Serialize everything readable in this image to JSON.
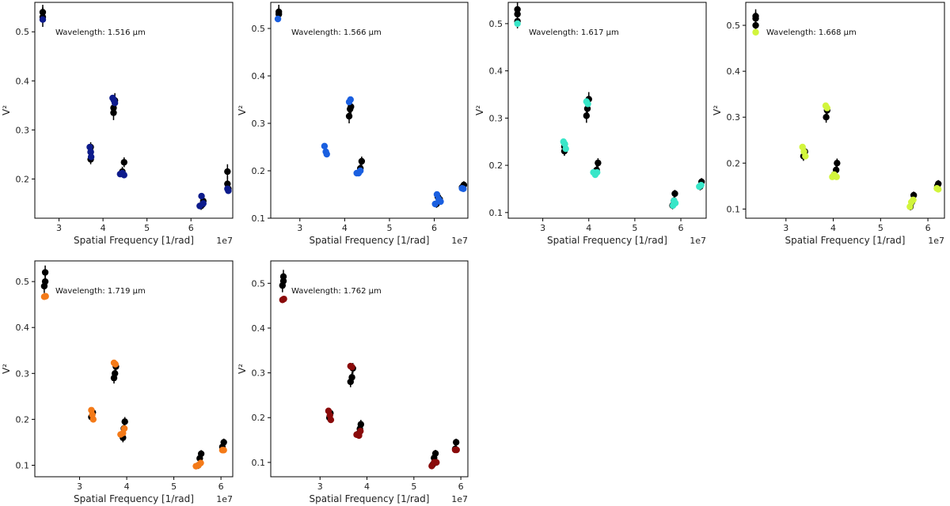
{
  "chart_data": [
    {
      "type": "scatter",
      "xlabel": "Spatial Frequency [1/rad]",
      "ylabel": "V²",
      "x_scale_note": "1e7",
      "annotation": "Wavelength: 1.516 μm",
      "xlim": [
        2.45,
        6.95
      ],
      "ylim": [
        0.12,
        0.56
      ],
      "xticks": [
        3,
        4,
        5,
        6
      ],
      "yticks": [
        0.2,
        0.3,
        0.4,
        0.5
      ],
      "xtick_labels": [
        "3",
        "4",
        "5",
        "6"
      ],
      "ytick_labels": [
        "0.2",
        "0.3",
        "0.4",
        "0.5"
      ],
      "grid": false,
      "color": "#0d1b8c",
      "series": [
        {
          "role": "observed",
          "color": "#000000",
          "x": [
            2.63,
            2.63,
            3.72,
            3.72,
            3.72,
            4.24,
            4.24,
            4.27,
            4.44,
            4.48,
            6.23,
            6.26,
            6.28,
            6.83,
            6.83,
            6.85
          ],
          "y": [
            0.53,
            0.54,
            0.24,
            0.255,
            0.265,
            0.335,
            0.345,
            0.36,
            0.215,
            0.234,
            0.145,
            0.148,
            0.155,
            0.19,
            0.215,
            0.18
          ],
          "err": [
            0.02,
            0.015,
            0.01,
            0.01,
            0.01,
            0.015,
            0.015,
            0.015,
            0.01,
            0.01,
            0.008,
            0.008,
            0.01,
            0.015,
            0.015,
            0.01
          ]
        },
        {
          "role": "model",
          "color": "#0d1b8c",
          "x": [
            2.63,
            3.7,
            3.72,
            3.73,
            4.22,
            4.25,
            4.27,
            4.39,
            4.44,
            4.48,
            6.2,
            6.24,
            6.28,
            6.83,
            6.85
          ],
          "y": [
            0.525,
            0.265,
            0.255,
            0.245,
            0.365,
            0.36,
            0.355,
            0.21,
            0.212,
            0.208,
            0.145,
            0.165,
            0.15,
            0.18,
            0.176
          ]
        }
      ]
    },
    {
      "type": "scatter",
      "xlabel": "Spatial Frequency [1/rad]",
      "ylabel": "V²",
      "x_scale_note": "1e7",
      "annotation": "Wavelength: 1.566 μm",
      "xlim": [
        2.35,
        6.75
      ],
      "ylim": [
        0.1,
        0.555
      ],
      "xticks": [
        3,
        4,
        5,
        6
      ],
      "yticks": [
        0.1,
        0.2,
        0.3,
        0.4,
        0.5
      ],
      "xtick_labels": [
        "3",
        "4",
        "5",
        "6"
      ],
      "ytick_labels": [
        "0.1",
        "0.2",
        "0.3",
        "0.4",
        "0.5"
      ],
      "grid": false,
      "color": "#1a5fe0",
      "series": [
        {
          "role": "observed",
          "color": "#000000",
          "x": [
            2.53,
            2.53,
            4.1,
            4.12,
            4.14,
            4.35,
            4.38,
            6.05,
            6.08,
            6.12,
            6.62,
            6.66
          ],
          "y": [
            0.53,
            0.535,
            0.315,
            0.33,
            0.335,
            0.205,
            0.22,
            0.13,
            0.145,
            0.14,
            0.165,
            0.17
          ],
          "err": [
            0.015,
            0.015,
            0.015,
            0.015,
            0.015,
            0.01,
            0.01,
            0.008,
            0.008,
            0.008,
            0.008,
            0.008
          ]
        },
        {
          "role": "model",
          "color": "#1a5fe0",
          "x": [
            2.51,
            3.55,
            3.58,
            3.6,
            4.1,
            4.13,
            4.27,
            4.31,
            4.35,
            6.02,
            6.06,
            6.1,
            6.14,
            6.62,
            6.65
          ],
          "y": [
            0.52,
            0.252,
            0.24,
            0.235,
            0.345,
            0.35,
            0.195,
            0.195,
            0.2,
            0.13,
            0.15,
            0.14,
            0.135,
            0.163,
            0.162
          ]
        }
      ]
    },
    {
      "type": "scatter",
      "xlabel": "Spatial Frequency [1/rad]",
      "ylabel": "V²",
      "x_scale_note": "1e7",
      "annotation": "Wavelength: 1.617 μm",
      "xlim": [
        2.25,
        6.55
      ],
      "ylim": [
        0.088,
        0.545
      ],
      "xticks": [
        3,
        4,
        5,
        6
      ],
      "yticks": [
        0.1,
        0.2,
        0.3,
        0.4,
        0.5
      ],
      "xtick_labels": [
        "3",
        "4",
        "5",
        "6"
      ],
      "ytick_labels": [
        "0.1",
        "0.2",
        "0.3",
        "0.4",
        "0.5"
      ],
      "grid": false,
      "color": "#38e6c8",
      "series": [
        {
          "role": "observed",
          "color": "#000000",
          "x": [
            2.45,
            2.45,
            2.45,
            3.47,
            3.47,
            3.95,
            3.97,
            4.0,
            4.17,
            4.2,
            5.82,
            5.85,
            5.87,
            6.42,
            6.45
          ],
          "y": [
            0.505,
            0.52,
            0.53,
            0.23,
            0.24,
            0.305,
            0.32,
            0.34,
            0.19,
            0.205,
            0.115,
            0.125,
            0.14,
            0.155,
            0.165
          ],
          "err": [
            0.015,
            0.015,
            0.015,
            0.01,
            0.01,
            0.015,
            0.015,
            0.015,
            0.01,
            0.01,
            0.008,
            0.008,
            0.008,
            0.008,
            0.008
          ]
        },
        {
          "role": "model",
          "color": "#38e6c8",
          "x": [
            2.45,
            3.45,
            3.48,
            3.5,
            3.95,
            3.98,
            4.1,
            4.14,
            4.18,
            5.83,
            5.85,
            5.88,
            6.4,
            6.44
          ],
          "y": [
            0.5,
            0.25,
            0.245,
            0.235,
            0.335,
            0.33,
            0.185,
            0.18,
            0.185,
            0.115,
            0.125,
            0.12,
            0.155,
            0.158
          ]
        }
      ]
    },
    {
      "type": "scatter",
      "xlabel": "Spatial Frequency [1/rad]",
      "ylabel": "V²",
      "x_scale_note": "1e7",
      "annotation": "Wavelength: 1.668 μm",
      "xlim": [
        2.15,
        6.35
      ],
      "ylim": [
        0.08,
        0.55
      ],
      "xticks": [
        3,
        4,
        5,
        6
      ],
      "yticks": [
        0.1,
        0.2,
        0.3,
        0.4,
        0.5
      ],
      "xtick_labels": [
        "3",
        "4",
        "5",
        "6"
      ],
      "ytick_labels": [
        "0.1",
        "0.2",
        "0.3",
        "0.4",
        "0.5"
      ],
      "grid": false,
      "color": "#d2f53c",
      "series": [
        {
          "role": "observed",
          "color": "#000000",
          "x": [
            2.36,
            2.36,
            2.36,
            3.37,
            3.4,
            3.85,
            3.87,
            4.02,
            4.06,
            4.08,
            5.63,
            5.66,
            5.7,
            6.2,
            6.22
          ],
          "y": [
            0.5,
            0.515,
            0.52,
            0.215,
            0.225,
            0.3,
            0.315,
            0.175,
            0.185,
            0.2,
            0.105,
            0.115,
            0.13,
            0.15,
            0.155
          ],
          "err": [
            0.015,
            0.015,
            0.015,
            0.01,
            0.01,
            0.012,
            0.012,
            0.01,
            0.01,
            0.01,
            0.008,
            0.008,
            0.008,
            0.008,
            0.008
          ]
        },
        {
          "role": "model",
          "color": "#d2f53c",
          "x": [
            2.36,
            3.35,
            3.38,
            3.41,
            3.84,
            3.87,
            3.98,
            4.02,
            4.07,
            5.62,
            5.65,
            5.69,
            6.19,
            6.22
          ],
          "y": [
            0.485,
            0.235,
            0.225,
            0.215,
            0.325,
            0.32,
            0.17,
            0.175,
            0.17,
            0.105,
            0.115,
            0.12,
            0.145,
            0.143
          ]
        }
      ]
    },
    {
      "type": "scatter",
      "xlabel": "Spatial Frequency [1/rad]",
      "ylabel": "V²",
      "x_scale_note": "1e7",
      "annotation": "Wavelength: 1.719 μm",
      "xlim": [
        2.05,
        6.25
      ],
      "ylim": [
        0.075,
        0.545
      ],
      "xticks": [
        3,
        4,
        5,
        6
      ],
      "yticks": [
        0.1,
        0.2,
        0.3,
        0.4,
        0.5
      ],
      "xtick_labels": [
        "3",
        "4",
        "5",
        "6"
      ],
      "ytick_labels": [
        "0.1",
        "0.2",
        "0.3",
        "0.4",
        "0.5"
      ],
      "grid": false,
      "color": "#f47a18",
      "series": [
        {
          "role": "observed",
          "color": "#000000",
          "x": [
            2.25,
            2.27,
            2.27,
            3.25,
            3.28,
            3.73,
            3.75,
            3.77,
            3.92,
            3.94,
            3.96,
            5.52,
            5.55,
            5.58,
            6.03,
            6.06
          ],
          "y": [
            0.49,
            0.5,
            0.52,
            0.205,
            0.215,
            0.29,
            0.3,
            0.315,
            0.16,
            0.18,
            0.195,
            0.1,
            0.115,
            0.125,
            0.14,
            0.15
          ],
          "err": [
            0.015,
            0.015,
            0.015,
            0.01,
            0.01,
            0.012,
            0.012,
            0.012,
            0.01,
            0.01,
            0.01,
            0.008,
            0.008,
            0.008,
            0.008,
            0.008
          ]
        },
        {
          "role": "model",
          "color": "#f47a18",
          "x": [
            2.25,
            2.28,
            3.25,
            3.27,
            3.29,
            3.73,
            3.76,
            3.87,
            3.92,
            3.95,
            5.47,
            5.52,
            5.57,
            6.03,
            6.06
          ],
          "y": [
            0.467,
            0.468,
            0.22,
            0.21,
            0.2,
            0.323,
            0.32,
            0.167,
            0.17,
            0.18,
            0.098,
            0.1,
            0.105,
            0.133,
            0.133
          ]
        }
      ]
    },
    {
      "type": "scatter",
      "xlabel": "Spatial Frequency [1/rad]",
      "ylabel": "V²",
      "x_scale_note": "1e7",
      "annotation": "Wavelength: 1.762 μm",
      "xlim": [
        1.95,
        6.15
      ],
      "ylim": [
        0.068,
        0.55
      ],
      "xticks": [
        3,
        4,
        5,
        6
      ],
      "yticks": [
        0.1,
        0.2,
        0.3,
        0.4,
        0.5
      ],
      "xtick_labels": [
        "3",
        "4",
        "5",
        "6"
      ],
      "ytick_labels": [
        "0.1",
        "0.2",
        "0.3",
        "0.4",
        "0.5"
      ],
      "grid": false,
      "color": "#8a0a0a",
      "series": [
        {
          "role": "observed",
          "color": "#000000",
          "x": [
            2.2,
            2.22,
            2.22,
            3.2,
            3.22,
            3.65,
            3.68,
            3.7,
            3.83,
            3.85,
            3.87,
            5.4,
            5.43,
            5.46,
            5.88,
            5.9
          ],
          "y": [
            0.495,
            0.505,
            0.515,
            0.2,
            0.21,
            0.28,
            0.29,
            0.31,
            0.165,
            0.175,
            0.185,
            0.095,
            0.11,
            0.12,
            0.13,
            0.145
          ],
          "err": [
            0.015,
            0.015,
            0.015,
            0.01,
            0.01,
            0.012,
            0.012,
            0.012,
            0.01,
            0.01,
            0.01,
            0.008,
            0.008,
            0.008,
            0.008,
            0.008
          ]
        },
        {
          "role": "model",
          "color": "#8a0a0a",
          "x": [
            2.2,
            2.23,
            3.18,
            3.21,
            3.23,
            3.65,
            3.68,
            3.78,
            3.83,
            3.86,
            5.38,
            5.43,
            5.48,
            5.88,
            5.91
          ],
          "y": [
            0.463,
            0.465,
            0.215,
            0.205,
            0.195,
            0.315,
            0.313,
            0.162,
            0.16,
            0.17,
            0.092,
            0.1,
            0.1,
            0.128,
            0.128
          ]
        }
      ]
    }
  ]
}
